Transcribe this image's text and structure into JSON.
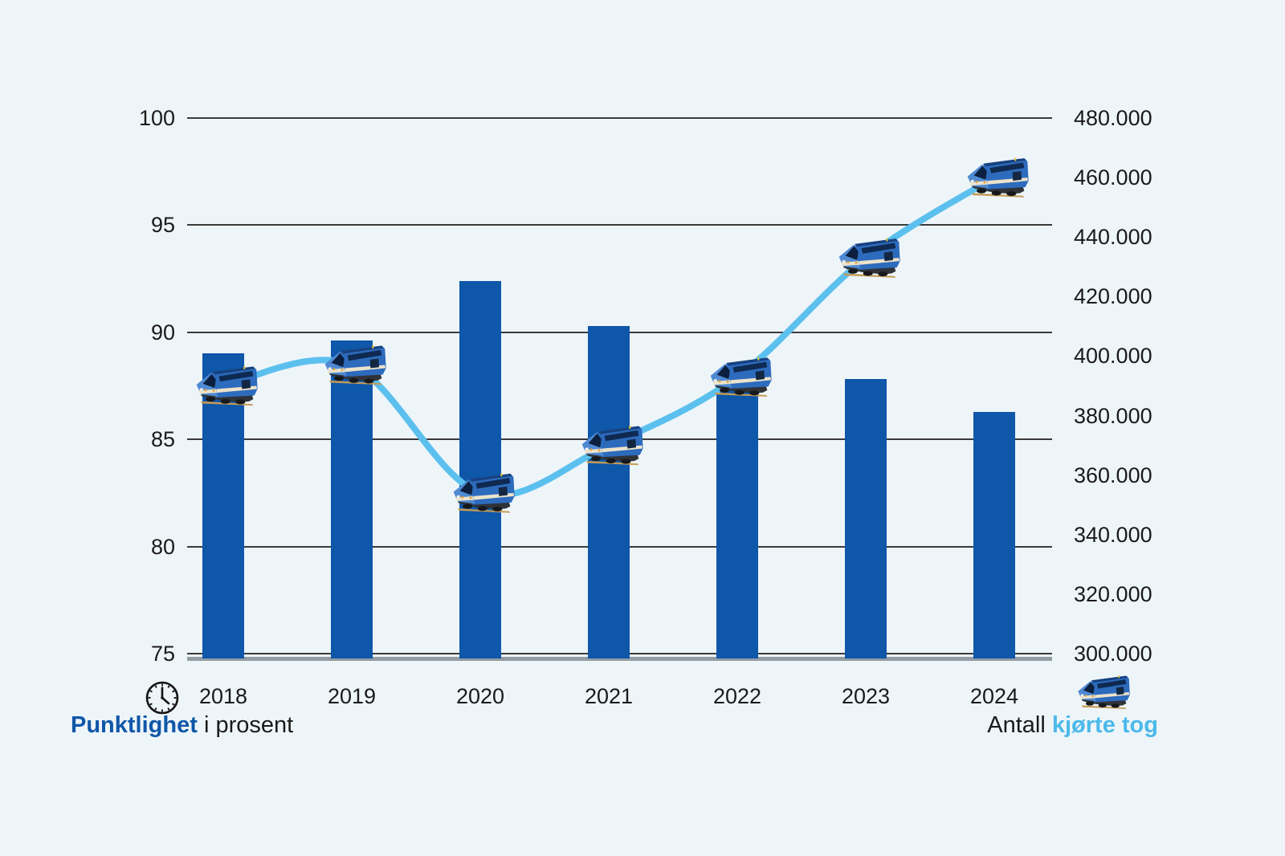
{
  "chart_data": {
    "type": "bar",
    "subtype": "dual-axis bar + line with train pictogram markers",
    "categories": [
      "2018",
      "2019",
      "2020",
      "2021",
      "2022",
      "2023",
      "2024"
    ],
    "series": [
      {
        "name": "Punktlighet i prosent",
        "type": "bar",
        "axis": "left",
        "color": "#0e57a9",
        "values": [
          89.0,
          89.6,
          92.4,
          90.3,
          87.5,
          87.8,
          86.3
        ]
      },
      {
        "name": "Antall kjørte tog",
        "type": "line",
        "axis": "right",
        "color": "#5cc0ee",
        "marker": "train-icon",
        "values": [
          390000,
          397000,
          354000,
          370000,
          393000,
          433000,
          460000
        ]
      }
    ],
    "left_axis": {
      "min": 75,
      "max": 100,
      "step": 5,
      "tick_labels": [
        "100",
        "95",
        "90",
        "85",
        "80",
        "75"
      ]
    },
    "right_axis": {
      "min": 300000,
      "max": 480000,
      "step": 20000,
      "tick_labels": [
        "480.000",
        "460.000",
        "440.000",
        "420.000",
        "400.000",
        "380.000",
        "360.000",
        "340.000",
        "320.000",
        "300.000"
      ]
    },
    "grid": true,
    "legend_position": "bottom"
  },
  "legend": {
    "left": {
      "icon": "clock-icon",
      "label_bold": "Punktlighet",
      "label_rest": " i prosent"
    },
    "right": {
      "icon": "train-icon",
      "label_plain": "Antall ",
      "label_bold": "kjørte tog"
    }
  },
  "colors": {
    "background": "#eef5f9",
    "bar": "#0e57a9",
    "line": "#5cc0ee",
    "gridline": "#3a3a3a",
    "baseline": "#939ca3",
    "text": "#1a1a1a",
    "legend_blue": "#0f57a8",
    "legend_light_blue": "#4cb9ea"
  }
}
